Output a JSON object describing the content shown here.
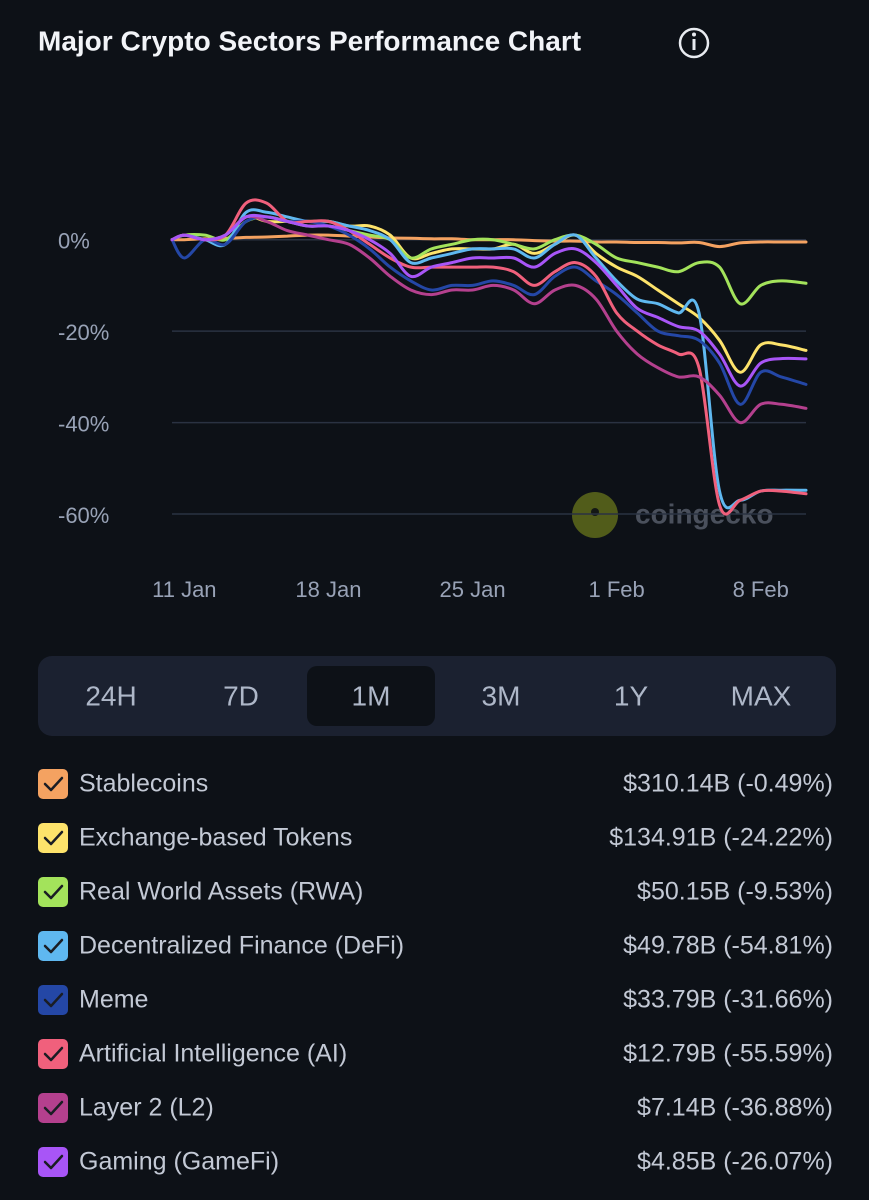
{
  "chart_data": {
    "type": "line",
    "title": "Major Crypto Sectors Performance Chart",
    "watermark": "coingecko",
    "x": [
      10.4,
      11,
      12,
      13,
      14,
      15,
      16,
      17,
      18,
      19,
      20,
      21,
      22,
      23,
      24,
      25,
      26,
      27,
      28,
      29,
      30,
      31,
      32,
      33,
      34,
      35,
      36,
      37,
      38,
      39,
      40,
      41.2
    ],
    "xlim": [
      10.4,
      41.2
    ],
    "xticks": [
      {
        "value": 11,
        "label": "11 Jan"
      },
      {
        "value": 18,
        "label": "18 Jan"
      },
      {
        "value": 25,
        "label": "25 Jan"
      },
      {
        "value": 32,
        "label": "1 Feb"
      },
      {
        "value": 39,
        "label": "8 Feb"
      }
    ],
    "ylim": [
      -60,
      10
    ],
    "yticks": [
      {
        "value": 0,
        "label": "0%"
      },
      {
        "value": -20,
        "label": "-20%"
      },
      {
        "value": -40,
        "label": "-40%"
      },
      {
        "value": -60,
        "label": "-60%"
      }
    ],
    "grid": true,
    "series": [
      {
        "name": "Stablecoins",
        "color": "#f4a261",
        "summary": "$310.14B (-0.49%)",
        "values": [
          0,
          0,
          0.2,
          0.3,
          0.5,
          0.6,
          0.8,
          1,
          1,
          0.8,
          0.6,
          0.4,
          0.3,
          0.2,
          0.2,
          0,
          0,
          0,
          -0.2,
          -0.3,
          -0.3,
          -0.5,
          -0.5,
          -0.6,
          -0.6,
          -0.7,
          -0.6,
          -1.5,
          -0.7,
          -0.5,
          -0.5,
          -0.49
        ]
      },
      {
        "name": "Exchange-based Tokens",
        "color": "#fde36b",
        "summary": "$134.91B (-24.22%)",
        "values": [
          0,
          1,
          0,
          1,
          5,
          4,
          4,
          4,
          4,
          3,
          3,
          1,
          -4,
          -3,
          -2,
          -2,
          -2,
          -1,
          -3,
          -1,
          1,
          -3,
          -6,
          -8,
          -11,
          -14,
          -17,
          -22,
          -29,
          -23,
          -23,
          -24.22
        ]
      },
      {
        "name": "Real World Assets (RWA)",
        "color": "#a3e35b",
        "summary": "$50.15B (-9.53%)",
        "values": [
          0,
          1,
          1,
          0,
          4,
          5,
          4,
          3,
          3,
          2,
          1,
          0,
          -4,
          -2,
          -1,
          0,
          0,
          -1,
          -2,
          0,
          1,
          -1,
          -4,
          -5,
          -6,
          -7,
          -5,
          -6,
          -14,
          -10,
          -9,
          -9.53
        ]
      },
      {
        "name": "Decentralized Finance (DeFi)",
        "color": "#5fb8f0",
        "summary": "$49.78B (-54.81%)",
        "values": [
          0,
          1,
          0,
          -1,
          6,
          6,
          5,
          4,
          4,
          3,
          2,
          0,
          -5,
          -4,
          -3,
          -2,
          -2,
          -2,
          -4,
          -1,
          1,
          -4,
          -9,
          -13,
          -14,
          -16,
          -16,
          -55,
          -57,
          -55,
          -54.8,
          -54.81
        ]
      },
      {
        "name": "Meme",
        "color": "#2447a6",
        "summary": "$33.79B (-31.66%)",
        "values": [
          0,
          -4,
          0,
          -1,
          4,
          5,
          4,
          4,
          3,
          1,
          -2,
          -6,
          -9,
          -11,
          -10,
          -10,
          -9,
          -10,
          -12,
          -8,
          -6,
          -9,
          -12,
          -16,
          -20,
          -21,
          -22,
          -27,
          -36,
          -29,
          -30,
          -31.66
        ]
      },
      {
        "name": "Artificial Intelligence (AI)",
        "color": "#f0607c",
        "summary": "$12.79B (-55.59%)",
        "values": [
          0,
          1,
          0,
          1,
          8,
          8,
          4,
          4,
          4,
          2,
          -1,
          -4,
          -6,
          -6,
          -6,
          -6,
          -6,
          -7,
          -10,
          -7,
          -5,
          -8,
          -16,
          -20,
          -23,
          -25,
          -28,
          -58,
          -57,
          -55,
          -55,
          -55.59
        ]
      },
      {
        "name": "Layer 2 (L2)",
        "color": "#b4408e",
        "summary": "$7.14B (-36.88%)",
        "values": [
          0,
          1,
          0,
          1,
          5,
          4,
          2,
          1,
          0,
          -1,
          -4,
          -8,
          -11,
          -12,
          -11,
          -11,
          -10,
          -11,
          -14,
          -11,
          -10,
          -13,
          -20,
          -25,
          -28,
          -30,
          -30,
          -34,
          -40,
          -36,
          -36,
          -36.88
        ]
      },
      {
        "name": "Gaming (GameFi)",
        "color": "#a855f7",
        "summary": "$4.85B (-26.07%)",
        "values": [
          0,
          1,
          0,
          1,
          5,
          5,
          4,
          3,
          3,
          2,
          0,
          -3,
          -8,
          -6,
          -5,
          -4,
          -4,
          -4,
          -6,
          -3,
          -2,
          -5,
          -10,
          -15,
          -17,
          -19,
          -20,
          -25,
          -32,
          -27,
          -26,
          -26.07
        ]
      }
    ],
    "ranges": [
      "24H",
      "7D",
      "1M",
      "3M",
      "1Y",
      "MAX"
    ],
    "selected_range": 2
  }
}
